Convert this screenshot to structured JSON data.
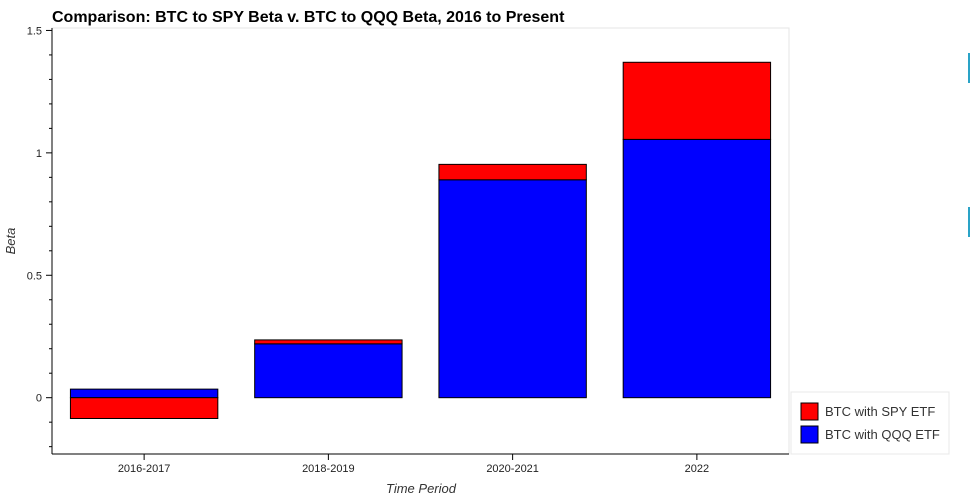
{
  "colors": {
    "spy": "#ff0000",
    "qqq": "#0000ff",
    "bar_stroke": "#000000",
    "side_tool": "#2aa3c7"
  },
  "chart_data": {
    "type": "bar",
    "layout": "stacked-by-sign",
    "title": "Comparison: BTC to SPY Beta v. BTC to QQQ Beta, 2016 to Present",
    "xlabel": "Time Period",
    "ylabel": "Beta",
    "categories": [
      "2016-2017",
      "2018-2019",
      "2020-2021",
      "2022"
    ],
    "series": [
      {
        "name": "BTC with SPY ETF",
        "values": [
          -0.085,
          0.016,
          0.063,
          0.315
        ]
      },
      {
        "name": "BTC with QQQ ETF",
        "values": [
          0.035,
          0.22,
          0.89,
          1.055
        ]
      }
    ],
    "ylim": [
      -0.23,
      1.51
    ],
    "yticks": [
      0,
      0.5,
      1,
      1.5
    ],
    "ytick_labels": [
      "0",
      "0.5",
      "1",
      "1.5"
    ],
    "yminor_step": 0.1,
    "legend": "bottom-right, outside plot",
    "grid": false
  }
}
